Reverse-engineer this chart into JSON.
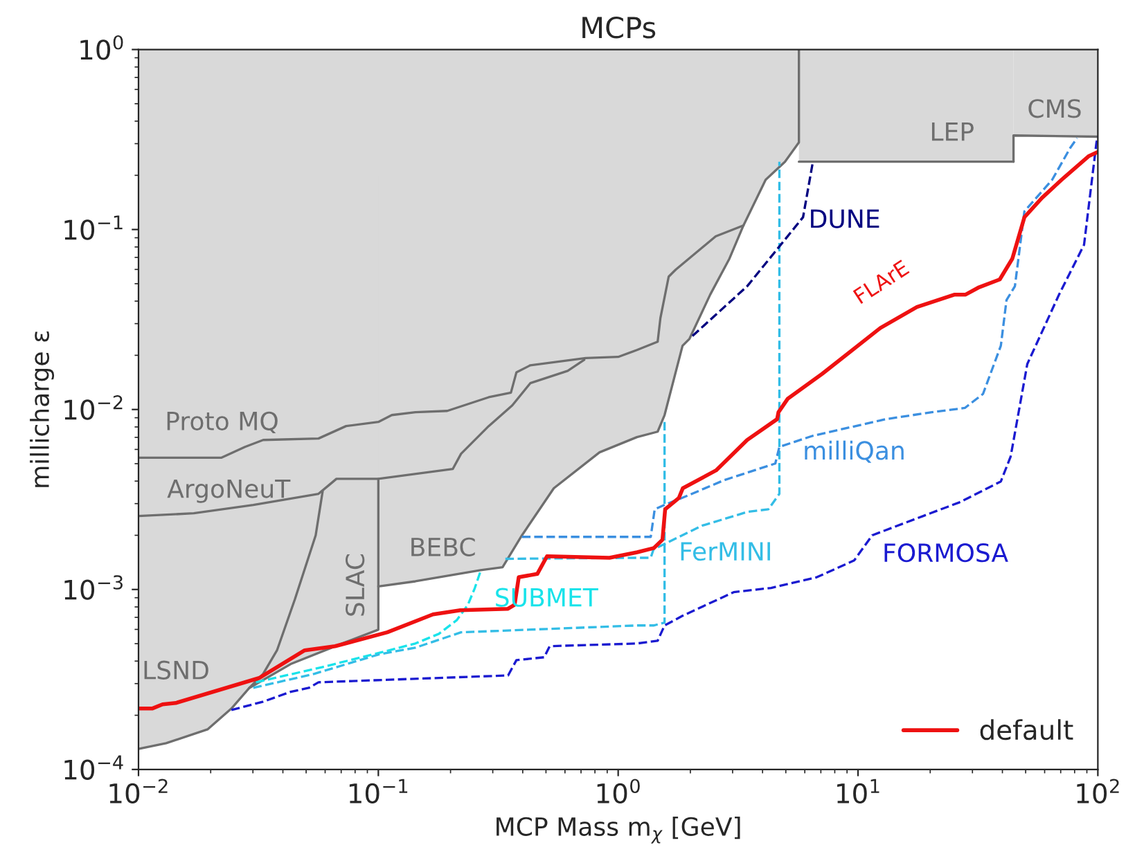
{
  "chart_data": {
    "type": "line",
    "title": "MCPs",
    "xlabel": "MCP Mass m$_{χ}$ [GeV]",
    "ylabel": "millicharge ε",
    "log": "xy",
    "xlim": [
      0.01,
      100
    ],
    "ylim": [
      0.0001,
      1
    ],
    "xticks": [
      {
        "value": 0.01,
        "label": "10$^{−2}$"
      },
      {
        "value": 0.1,
        "label": "10$^{−1}$"
      },
      {
        "value": 1,
        "label": "10$^{0}$"
      },
      {
        "value": 10,
        "label": "10$^{1}$"
      },
      {
        "value": 100,
        "label": "10$^{2}$"
      }
    ],
    "yticks": [
      {
        "value": 0.0001,
        "label": "10$^{−4}$"
      },
      {
        "value": 0.001,
        "label": "10$^{−3}$"
      },
      {
        "value": 0.01,
        "label": "10$^{−2}$"
      },
      {
        "value": 0.1,
        "label": "10$^{−1}$"
      },
      {
        "value": 1,
        "label": "10$^{0}$"
      }
    ],
    "grid": false,
    "legend": "lower right",
    "series": [
      {
        "type": "line",
        "color": "#6e6e6e",
        "line_style": "solid",
        "x": [
          0.01,
          0.0222,
          0.0278,
          0.0331,
          0.0563,
          0.0734,
          0.1,
          0.1138,
          0.1427,
          0.1937,
          0.2886,
          0.3571,
          0.3766,
          0.4301,
          0.732,
          1.0,
          1.197,
          1.461,
          1.5,
          1.624,
          1.736,
          2.55,
          3.33
        ],
        "values": [
          0.0054,
          0.0054,
          0.0062,
          0.00677,
          0.0069,
          0.00809,
          0.00853,
          0.00931,
          0.00966,
          0.00982,
          0.0117,
          0.0124,
          0.0161,
          0.0176,
          0.0193,
          0.0196,
          0.0214,
          0.0238,
          0.0322,
          0.0547,
          0.0598,
          0.0916,
          0.1054
        ]
      },
      {
        "type": "line",
        "color": "#6e6e6e",
        "line_style": "solid",
        "x": [
          0.01,
          0.017,
          0.0301,
          0.0563,
          0.0618,
          0.0669,
          0.1,
          0.2043,
          0.2213,
          0.2886,
          0.3618,
          0.4301,
          0.616,
          0.722
        ],
        "values": [
          0.00256,
          0.00265,
          0.00295,
          0.0034,
          0.00377,
          0.00412,
          0.00412,
          0.00467,
          0.00568,
          0.00809,
          0.01054,
          0.014,
          0.0164,
          0.0189
        ]
      },
      {
        "type": "line",
        "color": "#6e6e6e",
        "line_style": "solid",
        "x": [
          0.01,
          0.01304,
          0.0194,
          0.0244,
          0.029,
          0.0331,
          0.0378,
          0.0449,
          0.0548,
          0.0586
        ],
        "values": [
          0.00013,
          0.00014,
          0.000167,
          0.000218,
          0.000284,
          0.00034,
          0.000459,
          0.000883,
          0.002,
          0.00352
        ]
      },
      {
        "type": "line",
        "color": "#6e6e6e",
        "line_style": "solid",
        "x": [
          0.029,
          0.0431,
          0.0706,
          0.1,
          0.1
        ],
        "values": [
          0.000284,
          0.000385,
          0.000501,
          0.000598,
          0.00412
        ]
      },
      {
        "type": "line",
        "color": "#6e6e6e",
        "line_style": "solid",
        "x": [
          0.1,
          0.1427,
          0.2666,
          0.3296,
          0.3971,
          0.539,
          0.836,
          1.197,
          1.461,
          1.561,
          1.855,
          1.983,
          2.42,
          2.91,
          3.33,
          4.12,
          4.96,
          5.67,
          5.67
        ],
        "values": [
          0.00104,
          0.00111,
          0.00128,
          0.00133,
          0.002,
          0.00365,
          0.00578,
          0.00702,
          0.00753,
          0.00931,
          0.0226,
          0.0247,
          0.0435,
          0.0689,
          0.1054,
          0.189,
          0.238,
          0.305,
          1
        ]
      },
      {
        "type": "line",
        "color": "#6e6e6e",
        "line_style": "solid",
        "x": [
          5.67,
          44.5
        ],
        "values": [
          0.238,
          0.238
        ]
      },
      {
        "type": "line",
        "color": "#6e6e6e",
        "line_style": "solid",
        "x": [
          44.5,
          44.5,
          100
        ],
        "values": [
          0.238,
          0.333,
          0.328
        ]
      },
      {
        "type": "line",
        "color": "#19e3ea",
        "line_style": "dashed",
        "x": [
          0.0309,
          0.0586,
          0.1,
          0.1427,
          0.1788,
          0.2127,
          0.2364,
          0.2526,
          0.2666
        ],
        "values": [
          0.000305,
          0.000371,
          0.000443,
          0.000501,
          0.000567,
          0.000677,
          0.000823,
          0.00102,
          0.00126
        ]
      },
      {
        "type": "line",
        "color": "#33bde6",
        "line_style": "dashed",
        "x": [
          0.0301,
          0.0541,
          0.1,
          0.1427,
          0.2213,
          1.197,
          1.404,
          1.561,
          1.561
        ],
        "values": [
          0.000284,
          0.00034,
          0.000435,
          0.000475,
          0.000578,
          0.000631,
          0.000631,
          0.000654,
          0.00884
        ]
      },
      {
        "type": "line",
        "color": "#33bde6",
        "line_style": "dashed",
        "x": [
          0.3386,
          1.197,
          1.367,
          1.404,
          1.561,
          2.234,
          3.465,
          4.23,
          4.7,
          4.7
        ],
        "values": [
          0.00148,
          0.0015,
          0.0015,
          0.00167,
          0.00179,
          0.00226,
          0.0027,
          0.00279,
          0.0034,
          0.238
        ]
      },
      {
        "type": "line",
        "color": "#3b8fe0",
        "line_style": "dashed",
        "x": [
          0.3971,
          1.367,
          1.42,
          1.561,
          1.957,
          2.765,
          4.52,
          4.7,
          6.47,
          13.09,
          20.3,
          27.9,
          33.2,
          39.4,
          41.6,
          45.1,
          49.4,
          64.5,
          76.7,
          81.9
        ],
        "values": [
          0.00196,
          0.00196,
          0.00279,
          0.00295,
          0.00333,
          0.00405,
          0.00501,
          0.0062,
          0.00714,
          0.00884,
          0.00966,
          0.0102,
          0.0122,
          0.0226,
          0.0405,
          0.0484,
          0.126,
          0.189,
          0.284,
          0.322
        ]
      },
      {
        "type": "line",
        "color": "#1a1ad0",
        "line_style": "dashed",
        "x": [
          0.0244,
          0.0331,
          0.0431,
          0.0513,
          0.0563,
          0.3476,
          0.3766,
          0.4912,
          0.518,
          1.197,
          1.461,
          1.561,
          1.855,
          3.03,
          4.34,
          6.73,
          9.64,
          11.46,
          18.7,
          26.5,
          39.4,
          43.3,
          50.8,
          68.9,
          87.6,
          98.7,
          100
        ],
        "values": [
          0.000214,
          0.000238,
          0.00027,
          0.000284,
          0.000305,
          0.000333,
          0.000405,
          0.00042,
          0.000484,
          0.000501,
          0.000519,
          0.000631,
          0.000714,
          0.000966,
          0.00102,
          0.00117,
          0.00145,
          0.002,
          0.00256,
          0.00305,
          0.00398,
          0.00548,
          0.0179,
          0.0435,
          0.0823,
          0.305,
          0.328
        ]
      },
      {
        "type": "line",
        "color": "#000080",
        "line_style": "dashed",
        "x": [
          2.04,
          3.45,
          5.9,
          6.47
        ],
        "values": [
          0.0256,
          0.0484,
          0.117,
          0.234
        ]
      },
      {
        "type": "line",
        "name": "default",
        "color": "#ee1111",
        "line_style": "solid",
        "x": [
          0.01,
          0.0114,
          0.0126,
          0.0143,
          0.0318,
          0.0493,
          0.066,
          0.109,
          0.169,
          0.22,
          0.346,
          0.37,
          0.385,
          0.46,
          0.505,
          0.92,
          1.2,
          1.41,
          1.53,
          1.57,
          1.79,
          1.86,
          2.56,
          3.45,
          4.6,
          4.66,
          5.1,
          7.1,
          12.4,
          17.6,
          25.3,
          28.1,
          31.7,
          39,
          44,
          49.4,
          58.5,
          70.6,
          91.8,
          100
        ],
        "values": [
          0.000218,
          0.000218,
          0.00023,
          0.000234,
          0.000322,
          0.000459,
          0.000484,
          0.000578,
          0.000727,
          0.000767,
          0.00078,
          0.000823,
          0.00117,
          0.00122,
          0.00153,
          0.0015,
          0.00161,
          0.0017,
          0.00189,
          0.00279,
          0.00322,
          0.00365,
          0.00459,
          0.00677,
          0.00884,
          0.00966,
          0.0115,
          0.0158,
          0.0284,
          0.0371,
          0.0435,
          0.0435,
          0.0475,
          0.0528,
          0.0689,
          0.117,
          0.15,
          0.189,
          0.256,
          0.27
        ]
      }
    ],
    "annotations": [
      "Proto MQ",
      "ArgoNeuT",
      "LSND",
      "SLAC",
      "BEBC",
      "LEP",
      "CMS",
      "SUBMET",
      "FerMINI",
      "milliQan",
      "FORMOSA",
      "DUNE",
      "FLArE"
    ]
  }
}
